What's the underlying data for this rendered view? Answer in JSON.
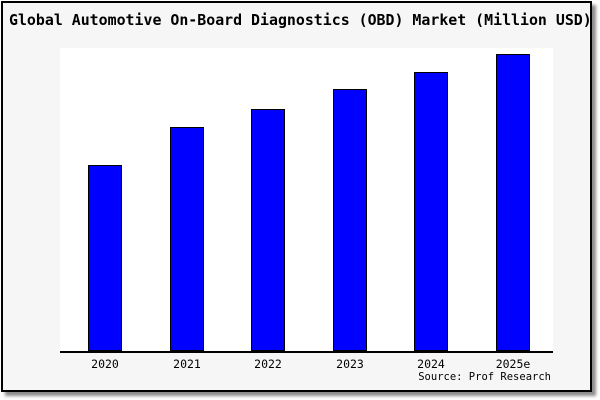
{
  "title": "Global Automotive On-Board Diagnostics (OBD) Market (Million USD)",
  "source": "Source: Prof Research",
  "colors": {
    "card_bg": "#f6f6f6",
    "plot_bg": "#ffffff",
    "bar_fill": "#0000ff",
    "bar_edge": "#000000",
    "axis": "#000000",
    "frame_border": "#000000",
    "text": "#000000"
  },
  "chart_data": {
    "type": "bar",
    "title": "Global Automotive On-Board Diagnostics (OBD) Market (Million USD)",
    "categories": [
      "2020",
      "2021",
      "2022",
      "2023",
      "2024",
      "2025e"
    ],
    "values": [
      188,
      226,
      244,
      264,
      281,
      299
    ],
    "value_note": "No y-axis ticks or data labels are shown in the figure; values are relative bar heights measured in pixels (axis baseline to bar top).",
    "xlabel": "",
    "ylabel": "",
    "legend": null,
    "grid": false,
    "y_axis_visible": false,
    "bar_color": "#0000ff",
    "bar_edge_color": "#000000",
    "source": "Source: Prof Research"
  }
}
